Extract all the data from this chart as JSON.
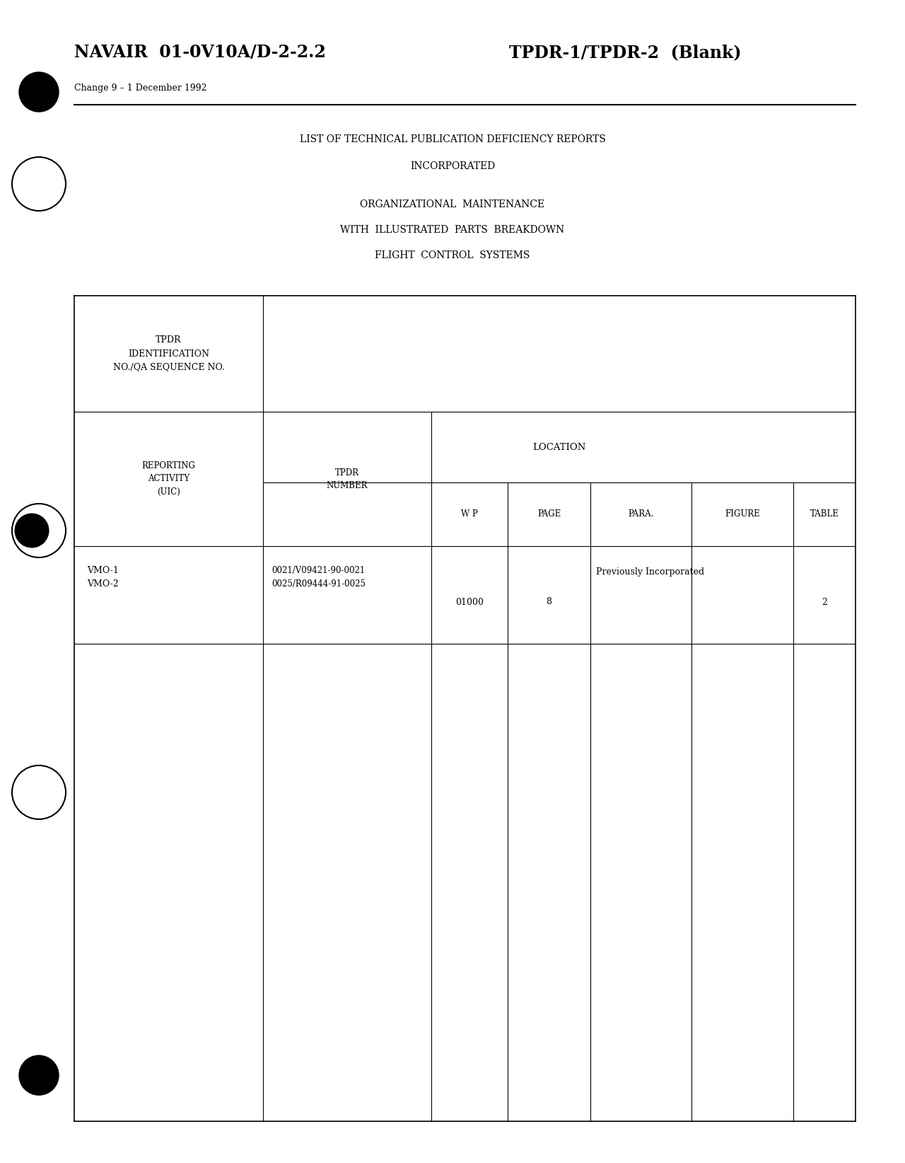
{
  "bg_color": "#ffffff",
  "page_width": 12.8,
  "page_height": 16.44,
  "header_left": "NAVAIR  01-0V10A/D-2-2.2",
  "header_right": "TPDR-1/TPDR-2  (Blank)",
  "subheader": "Change 9 – 1 December 1992",
  "title_line1": "LIST OF TECHNICAL PUBLICATION DEFICIENCY REPORTS",
  "title_line2": "INCORPORATED",
  "subtitle_line1": "ORGANIZATIONAL  MAINTENANCE",
  "subtitle_line2": "WITH  ILLUSTRATED  PARTS  BREAKDOWN",
  "subtitle_line3": "FLIGHT  CONTROL  SYSTEMS",
  "col_header_tpdr_id": "TPDR\nIDENTIFICATION\nNO./QA SEQUENCE NO.",
  "col_header_location": "LOCATION",
  "col_header_reporting": "REPORTING\nACTIVITY\n(UIC)",
  "col_header_tpdr_num": "TPDR\nNUMBER",
  "col_header_wp": "W P",
  "col_header_page": "PAGE",
  "col_header_para": "PARA.",
  "col_header_figure": "FIGURE",
  "col_header_table": "TABLE",
  "data_row_activity": "VMO-1\nVMO-2",
  "data_row_tpdr_num": "0021/V09421-90-0021\n0025/R09444-91-0025",
  "data_row_wp": "01000",
  "data_row_page": "8",
  "data_row_prev_inc": "Previously Incorporated",
  "data_row_table": "2"
}
